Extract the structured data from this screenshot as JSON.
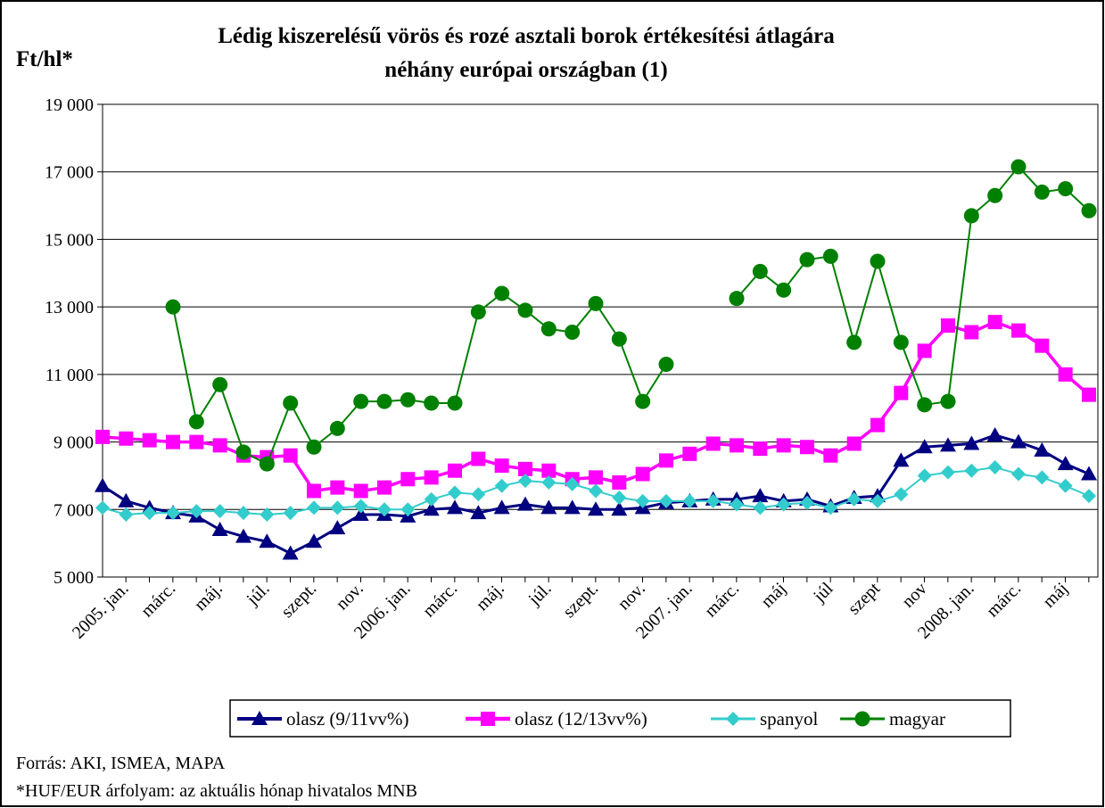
{
  "chart_data": {
    "type": "line",
    "title": [
      "Lédig kiszerelésű vörös és rozé asztali borok értékesítési átlagára",
      "néhány európai országban (1)"
    ],
    "y_label": "Ft/hl*",
    "categories": [
      "2005. jan.",
      null,
      "márc.",
      null,
      "máj.",
      null,
      "júl.",
      null,
      "szept.",
      null,
      "nov.",
      null,
      "2006. jan.",
      null,
      "márc.",
      null,
      "máj.",
      null,
      "júl.",
      null,
      "szept.",
      null,
      "nov.",
      null,
      "2007. jan.",
      null,
      "márc.",
      null,
      "máj",
      null,
      "júl",
      null,
      "szept",
      null,
      "nov",
      null,
      "2008. jan.",
      null,
      "márc.",
      null,
      "máj",
      null,
      null
    ],
    "series": [
      {
        "name": "olasz (9/11vv%)",
        "color": "#000080",
        "marker": "triangle",
        "values": [
          7700,
          7250,
          7050,
          6900,
          6800,
          6400,
          6200,
          6050,
          5700,
          6050,
          6450,
          6850,
          6850,
          6800,
          7000,
          7050,
          6900,
          7050,
          7150,
          7050,
          7050,
          7000,
          7000,
          7050,
          7200,
          7250,
          7300,
          7300,
          7400,
          7250,
          7300,
          7100,
          7350,
          7400,
          8450,
          8850,
          8900,
          8950,
          9200,
          9000,
          8750,
          8350,
          8050
        ]
      },
      {
        "name": "olasz (12/13vv%)",
        "color": "#ff00ff",
        "marker": "square",
        "values": [
          9150,
          9100,
          9050,
          9000,
          9000,
          8900,
          8600,
          8550,
          8600,
          7550,
          7650,
          7550,
          7650,
          7900,
          7950,
          8150,
          8500,
          8300,
          8200,
          8150,
          7900,
          7950,
          7800,
          8050,
          8450,
          8650,
          8950,
          8900,
          8800,
          8900,
          8850,
          8600,
          8950,
          9500,
          10450,
          11700,
          12450,
          12250,
          12550,
          12300,
          11850,
          11000,
          10400
        ]
      },
      {
        "name": "spanyol",
        "color": "#33cccc",
        "marker": "diamond",
        "values": [
          7050,
          6850,
          6900,
          6900,
          6950,
          6950,
          6900,
          6850,
          6900,
          7050,
          7050,
          7100,
          7000,
          7000,
          7300,
          7500,
          7450,
          7700,
          7850,
          7800,
          7750,
          7550,
          7350,
          7250,
          7250,
          7250,
          7250,
          7150,
          7050,
          7150,
          7200,
          7050,
          7300,
          7250,
          7450,
          8000,
          8100,
          8150,
          8250,
          8050,
          7950,
          7700,
          7400
        ]
      },
      {
        "name": "magyar",
        "color": "#008000",
        "marker": "circle",
        "values": [
          null,
          null,
          null,
          13000,
          9600,
          10700,
          8700,
          8350,
          10150,
          8850,
          9400,
          10200,
          10200,
          10250,
          10150,
          10150,
          12850,
          13400,
          12900,
          12350,
          12250,
          13100,
          12050,
          10200,
          11300,
          null,
          null,
          13250,
          14050,
          13500,
          14400,
          14500,
          11950,
          14350,
          11950,
          10100,
          10200,
          15700,
          16300,
          17150,
          16400,
          16500,
          15850
        ]
      }
    ],
    "ylim": [
      5000,
      19000
    ],
    "yticks": [
      {
        "value": 5000,
        "label": "5 000"
      },
      {
        "value": 7000,
        "label": "7 000"
      },
      {
        "value": 9000,
        "label": "9 000"
      },
      {
        "value": 11000,
        "label": "11 000"
      },
      {
        "value": 13000,
        "label": "13 000"
      },
      {
        "value": 15000,
        "label": "15 000"
      },
      {
        "value": 17000,
        "label": "17 000"
      },
      {
        "value": 19000,
        "label": "19 000"
      }
    ],
    "grid": true,
    "legend": "bottom",
    "notes": [
      "Forrás: AKI, ISMEA, MAPA",
      "*HUF/EUR árfolyam: az aktuális hónap hivatalos MNB"
    ]
  }
}
